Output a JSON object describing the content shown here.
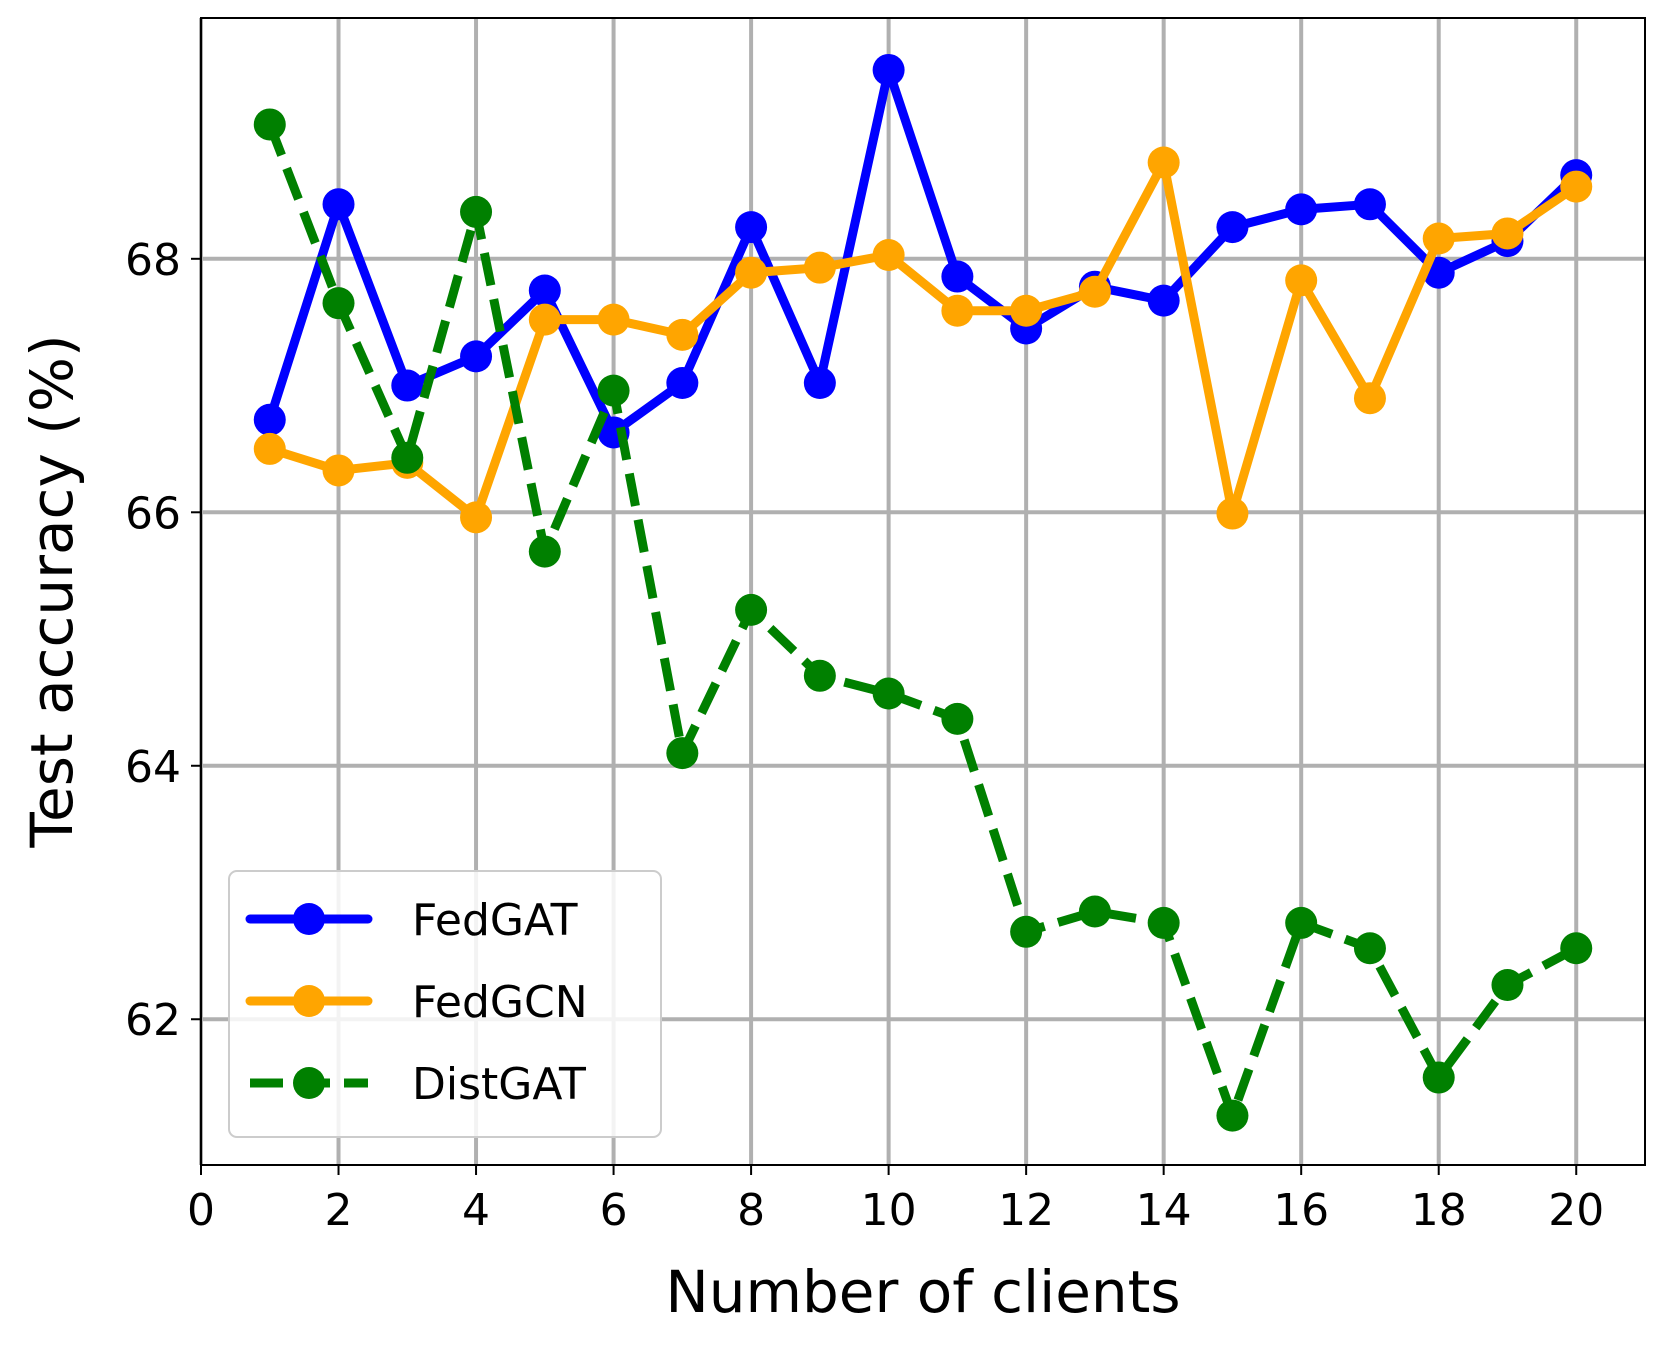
{
  "chart_data": {
    "type": "line",
    "title": "",
    "xlabel": "Number of clients",
    "ylabel": "Test accuracy (%)",
    "xlim": [
      0,
      21
    ],
    "ylim": [
      60.85,
      69.9
    ],
    "xticks": [
      0,
      2,
      4,
      6,
      8,
      10,
      12,
      14,
      16,
      18,
      20
    ],
    "yticks": [
      62,
      64,
      66,
      68
    ],
    "grid": true,
    "legend_position": "lower-left",
    "x": [
      1,
      2,
      3,
      4,
      5,
      6,
      7,
      8,
      9,
      10,
      11,
      12,
      13,
      14,
      15,
      16,
      17,
      18,
      19,
      20
    ],
    "series": [
      {
        "name": "FedGAT",
        "color": "#0000ff",
        "style": "solid",
        "marker": "circle",
        "values": [
          66.73,
          68.43,
          67.0,
          67.23,
          67.75,
          66.63,
          67.02,
          68.25,
          67.02,
          69.49,
          67.86,
          67.45,
          67.78,
          67.67,
          68.25,
          68.39,
          68.43,
          67.89,
          68.14,
          68.66
        ]
      },
      {
        "name": "FedGCN",
        "color": "#ffa500",
        "style": "solid",
        "marker": "circle",
        "values": [
          66.5,
          66.33,
          66.39,
          65.96,
          67.52,
          67.52,
          67.4,
          67.89,
          67.93,
          68.03,
          67.59,
          67.59,
          67.74,
          68.76,
          65.99,
          67.83,
          66.9,
          68.16,
          68.2,
          68.57
        ]
      },
      {
        "name": "DistGAT",
        "color": "#008000",
        "style": "dashed",
        "marker": "circle",
        "values": [
          69.06,
          67.65,
          66.43,
          68.37,
          65.69,
          66.96,
          64.1,
          65.23,
          64.71,
          64.57,
          64.37,
          62.69,
          62.85,
          62.76,
          61.24,
          62.76,
          62.56,
          61.54,
          62.27,
          62.56
        ]
      }
    ]
  }
}
